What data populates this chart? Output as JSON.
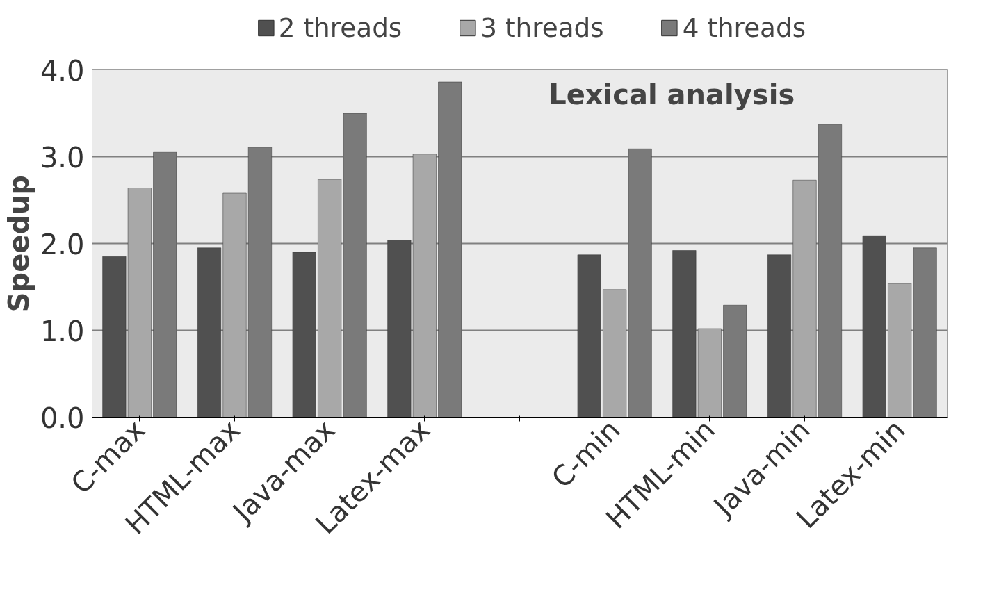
{
  "chart_data": {
    "type": "bar",
    "title": "Lexical analysis",
    "ylabel": "Speedup",
    "categories": [
      "C-max",
      "HTML-max",
      "Java-max",
      "Latex-max",
      null,
      "C-min",
      "HTML-min",
      "Java-min",
      "Latex-min"
    ],
    "series": [
      {
        "name": "2 threads",
        "color": "#505050",
        "values": [
          1.85,
          1.95,
          1.9,
          2.04,
          null,
          1.87,
          1.92,
          1.87,
          2.09
        ]
      },
      {
        "name": "3 threads",
        "color": "#a8a8a8",
        "values": [
          2.64,
          2.58,
          2.74,
          3.03,
          null,
          1.47,
          1.02,
          2.73,
          1.54
        ]
      },
      {
        "name": "4 threads",
        "color": "#7a7a7a",
        "values": [
          3.05,
          3.11,
          3.5,
          3.86,
          null,
          3.09,
          1.29,
          3.37,
          1.95
        ]
      }
    ],
    "ylim": [
      0,
      4
    ],
    "yticks": [
      {
        "value": 0,
        "label": "0.0"
      },
      {
        "value": 1,
        "label": "1.0"
      },
      {
        "value": 2,
        "label": "2.0"
      },
      {
        "value": 3,
        "label": "3.0"
      },
      {
        "value": 4,
        "label": "4.0"
      }
    ],
    "grid": "y",
    "legend": "top"
  }
}
